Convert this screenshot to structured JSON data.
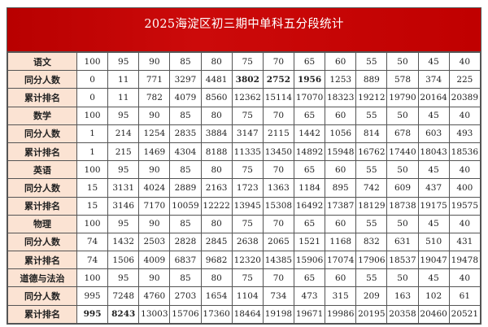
{
  "title": "2025海淀区初三期中单科五分段统计",
  "rows": [
    {
      "label": "语文",
      "values": [
        "100",
        "95",
        "90",
        "85",
        "80",
        "75",
        "70",
        "65",
        "60",
        "55",
        "50",
        "45",
        "40"
      ],
      "bold": []
    },
    {
      "label": "同分人数",
      "values": [
        "0",
        "11",
        "771",
        "3297",
        "4481",
        "3802",
        "2752",
        "1956",
        "1253",
        "889",
        "578",
        "374",
        "225"
      ],
      "bold": [
        5,
        6,
        7
      ]
    },
    {
      "label": "累计排名",
      "values": [
        "0",
        "11",
        "782",
        "4079",
        "8560",
        "12362",
        "15114",
        "17070",
        "18323",
        "19212",
        "19790",
        "20164",
        "20389"
      ],
      "bold": []
    },
    {
      "label": "数学",
      "values": [
        "100",
        "95",
        "90",
        "85",
        "80",
        "75",
        "70",
        "65",
        "60",
        "55",
        "50",
        "45",
        "40"
      ],
      "bold": []
    },
    {
      "label": "同分人数",
      "values": [
        "1",
        "214",
        "1254",
        "2835",
        "3884",
        "3147",
        "2115",
        "1442",
        "1056",
        "814",
        "678",
        "603",
        "493"
      ],
      "bold": []
    },
    {
      "label": "累计排名",
      "values": [
        "1",
        "215",
        "1469",
        "4304",
        "8188",
        "11335",
        "13450",
        "14892",
        "15948",
        "16762",
        "17440",
        "18043",
        "18536"
      ],
      "bold": []
    },
    {
      "label": "英语",
      "values": [
        "100",
        "95",
        "90",
        "85",
        "80",
        "75",
        "70",
        "65",
        "60",
        "55",
        "50",
        "45",
        "40"
      ],
      "bold": []
    },
    {
      "label": "同分人数",
      "values": [
        "15",
        "3131",
        "4024",
        "2889",
        "2163",
        "1723",
        "1363",
        "1184",
        "895",
        "742",
        "609",
        "437",
        "400"
      ],
      "bold": []
    },
    {
      "label": "累计排名",
      "values": [
        "15",
        "3146",
        "7170",
        "10059",
        "12222",
        "13945",
        "15308",
        "16492",
        "17387",
        "18129",
        "18738",
        "19175",
        "19575"
      ],
      "bold": []
    },
    {
      "label": "物理",
      "values": [
        "100",
        "95",
        "90",
        "85",
        "80",
        "75",
        "70",
        "65",
        "60",
        "55",
        "50",
        "45",
        "40"
      ],
      "bold": []
    },
    {
      "label": "同分人数",
      "values": [
        "74",
        "1432",
        "2503",
        "2828",
        "2845",
        "2638",
        "2065",
        "1521",
        "1168",
        "832",
        "631",
        "510",
        "431"
      ],
      "bold": []
    },
    {
      "label": "累计排名",
      "values": [
        "74",
        "1506",
        "4009",
        "6837",
        "9682",
        "12320",
        "14385",
        "15906",
        "17074",
        "17906",
        "18537",
        "19047",
        "19478"
      ],
      "bold": []
    },
    {
      "label": "道德与法治",
      "values": [
        "100",
        "95",
        "90",
        "85",
        "80",
        "75",
        "70",
        "65",
        "60",
        "55",
        "50",
        "45",
        "40"
      ],
      "bold": []
    },
    {
      "label": "同分人数",
      "values": [
        "995",
        "7248",
        "4760",
        "2703",
        "1654",
        "1104",
        "734",
        "473",
        "315",
        "209",
        "163",
        "102",
        "61"
      ],
      "bold": []
    },
    {
      "label": "累计排名",
      "values": [
        "995",
        "8243",
        "13003",
        "15706",
        "17360",
        "18464",
        "19198",
        "19671",
        "19986",
        "20195",
        "20358",
        "20460",
        "20521"
      ],
      "bold": [
        0,
        1
      ]
    }
  ],
  "colors": {
    "title_bg": "#c00000",
    "label_bg": "#fbe3d3"
  }
}
